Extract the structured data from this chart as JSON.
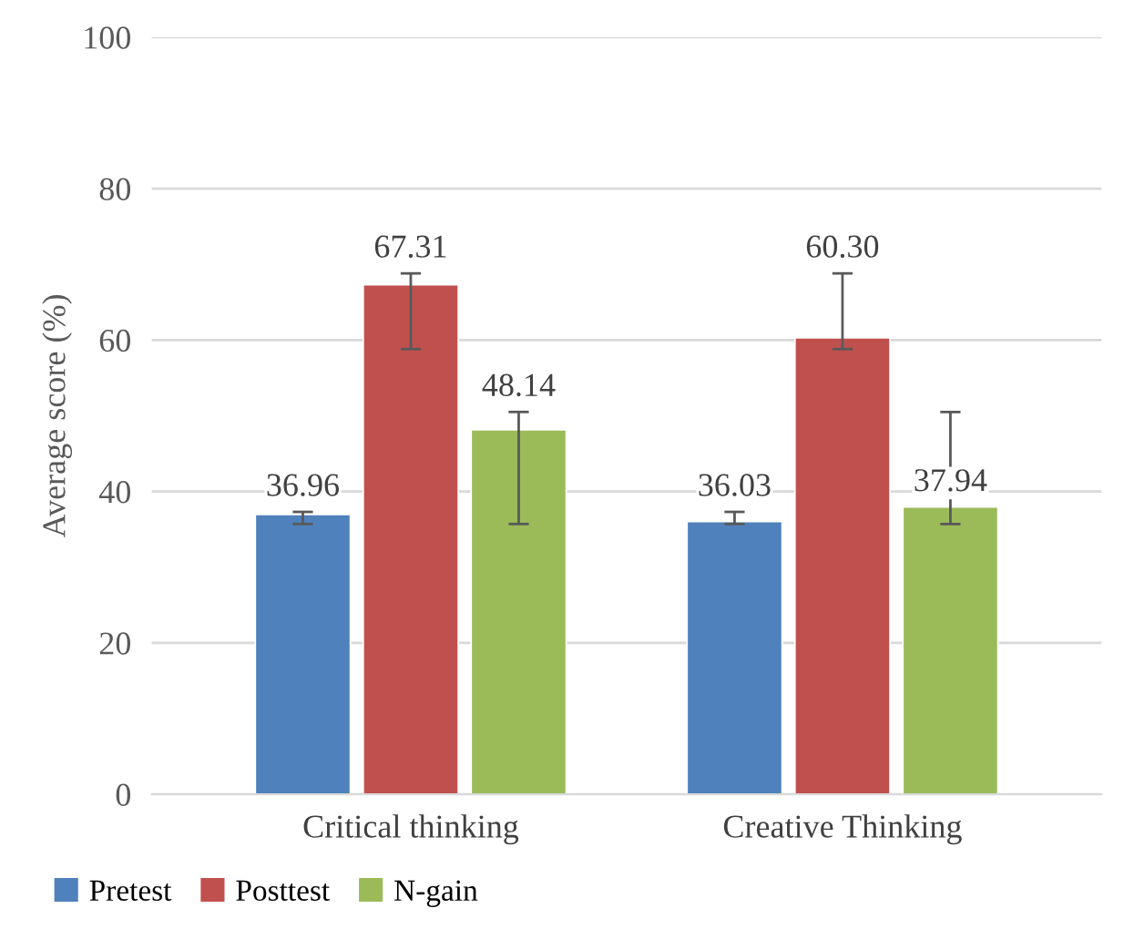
{
  "chart_data": {
    "type": "bar",
    "ylabel": "Average score (%)",
    "categories": [
      "Critical thinking",
      "Creative Thinking"
    ],
    "series": [
      {
        "name": "Pretest",
        "color": "#4f81bd",
        "values": [
          36.96,
          36.03
        ],
        "errors": [
          [
            35.7,
            37.3
          ],
          [
            35.7,
            37.3
          ]
        ]
      },
      {
        "name": "Posttest",
        "color": "#c0504d",
        "values": [
          67.31,
          60.3
        ],
        "errors": [
          [
            58.8,
            68.8
          ],
          [
            58.8,
            68.8
          ]
        ],
        "value_labels": [
          "67.31",
          "60.30"
        ]
      },
      {
        "name": "N-gain",
        "color": "#9bbb59",
        "values": [
          48.14,
          37.94
        ],
        "errors": [
          [
            35.7,
            50.5
          ],
          [
            35.7,
            50.5
          ]
        ]
      }
    ],
    "data_labels": true,
    "ylim": [
      0,
      100
    ],
    "yticks": [
      0,
      20,
      40,
      60,
      80,
      100
    ],
    "grid": "y",
    "legend": "bottom left"
  }
}
